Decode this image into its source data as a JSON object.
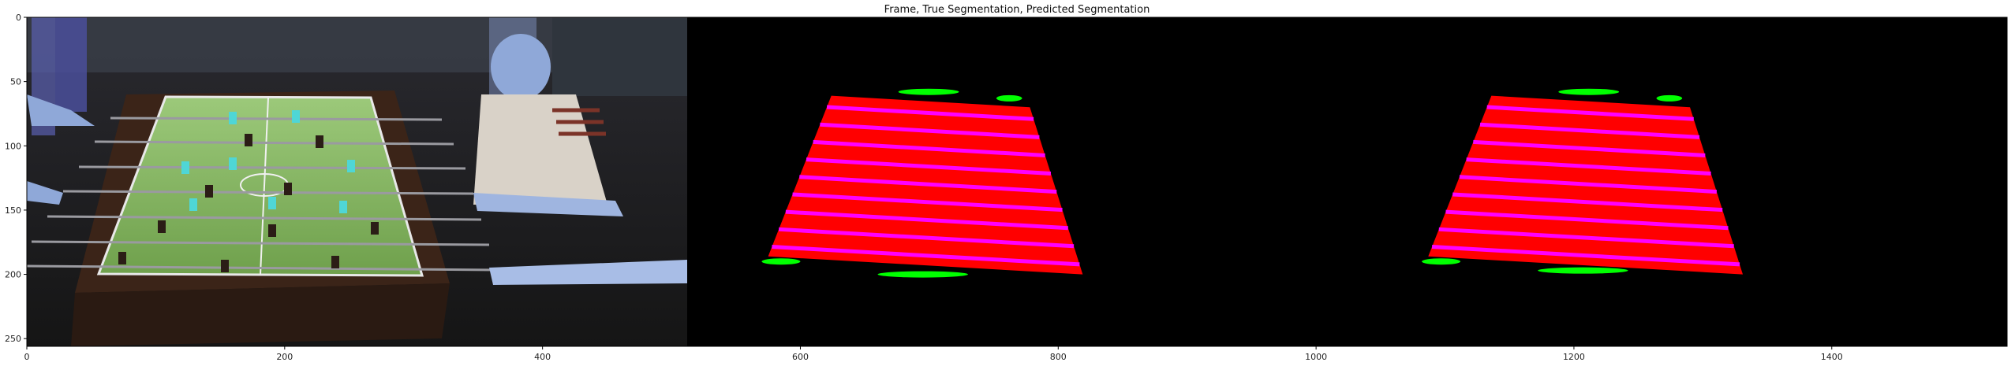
{
  "chart_data": {
    "type": "image",
    "title": "Frame, True Segmentation, Predicted Segmentation",
    "xlim": [
      0,
      1536
    ],
    "ylim": [
      256,
      0
    ],
    "xticks": [
      0,
      200,
      400,
      600,
      800,
      1000,
      1200,
      1400
    ],
    "yticks": [
      0,
      50,
      100,
      150,
      200,
      250
    ],
    "grid": false,
    "panels": [
      {
        "name": "Frame",
        "x_range": [
          0,
          512
        ]
      },
      {
        "name": "True Segmentation",
        "x_range": [
          512,
          1024
        ]
      },
      {
        "name": "Predicted Segmentation",
        "x_range": [
          1024,
          1536
        ]
      }
    ],
    "segmentation_colors": {
      "background": "#000000",
      "table": "#ff0000",
      "rods": "#ff00ff",
      "players": "#00ff00"
    },
    "true_segmentation": {
      "table_quad": [
        [
          624,
          61
        ],
        [
          778,
          70
        ],
        [
          819,
          200
        ],
        [
          575,
          186
        ]
      ],
      "green_blobs": [
        {
          "x": [
            676,
            723
          ],
          "y": 58
        },
        {
          "x": [
            752,
            772
          ],
          "y": 63
        },
        {
          "x": [
            570,
            600
          ],
          "y": 190
        },
        {
          "x": [
            660,
            730
          ],
          "y": 200
        }
      ]
    },
    "predicted_segmentation": {
      "table_quad": [
        [
          1136,
          61
        ],
        [
          1290,
          70
        ],
        [
          1331,
          200
        ],
        [
          1087,
          186
        ]
      ],
      "green_blobs": [
        {
          "x": [
            1188,
            1235
          ],
          "y": 58
        },
        {
          "x": [
            1264,
            1284
          ],
          "y": 63
        },
        {
          "x": [
            1082,
            1112
          ],
          "y": 190
        },
        {
          "x": [
            1172,
            1242
          ],
          "y": 197
        }
      ]
    }
  }
}
